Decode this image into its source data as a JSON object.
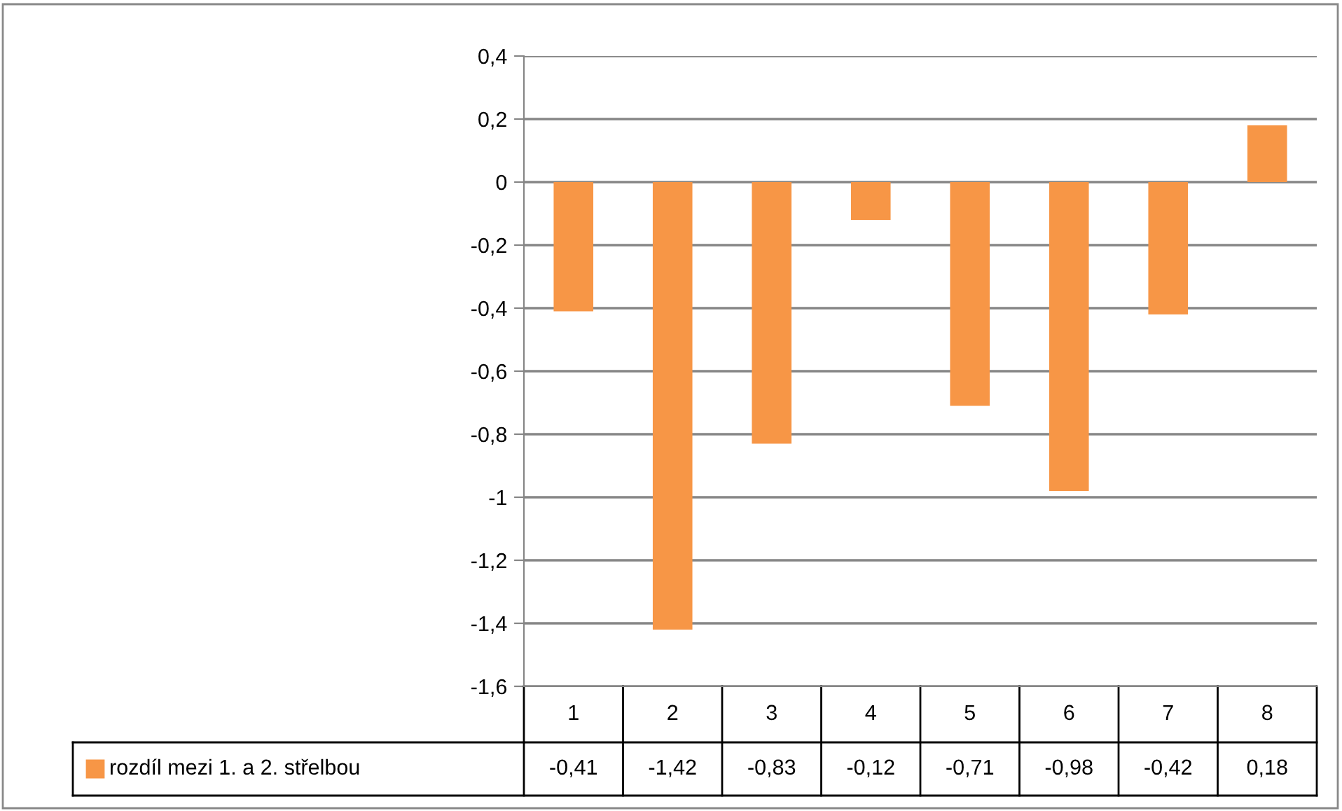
{
  "chart_data": {
    "type": "bar",
    "categories": [
      "1",
      "2",
      "3",
      "4",
      "5",
      "6",
      "7",
      "8"
    ],
    "series": [
      {
        "name": "rozdíl mezi 1. a 2. střelbou",
        "color": "#f79646",
        "values": [
          -0.41,
          -1.42,
          -0.83,
          -0.12,
          -0.71,
          -0.98,
          -0.42,
          0.18
        ],
        "value_labels": [
          "-0,41",
          "-1,42",
          "-0,83",
          "-0,12",
          "-0,71",
          "-0,98",
          "-0,42",
          "0,18"
        ]
      }
    ],
    "ylim": [
      -1.6,
      0.4
    ],
    "yticks": [
      {
        "value": 0.4,
        "label": "0,4"
      },
      {
        "value": 0.2,
        "label": "0,2"
      },
      0,
      {
        "value": -0.2,
        "label": "-0,2"
      },
      {
        "value": -0.4,
        "label": "-0,4"
      },
      {
        "value": -0.6,
        "label": "-0,6"
      },
      {
        "value": -0.8,
        "label": "-0,8"
      },
      -1,
      {
        "value": -1.2,
        "label": "-1,2"
      },
      {
        "value": -1.4,
        "label": "-1,4"
      },
      {
        "value": -1.6,
        "label": "-1,6"
      }
    ],
    "grid": "y",
    "legend": "bottom"
  }
}
